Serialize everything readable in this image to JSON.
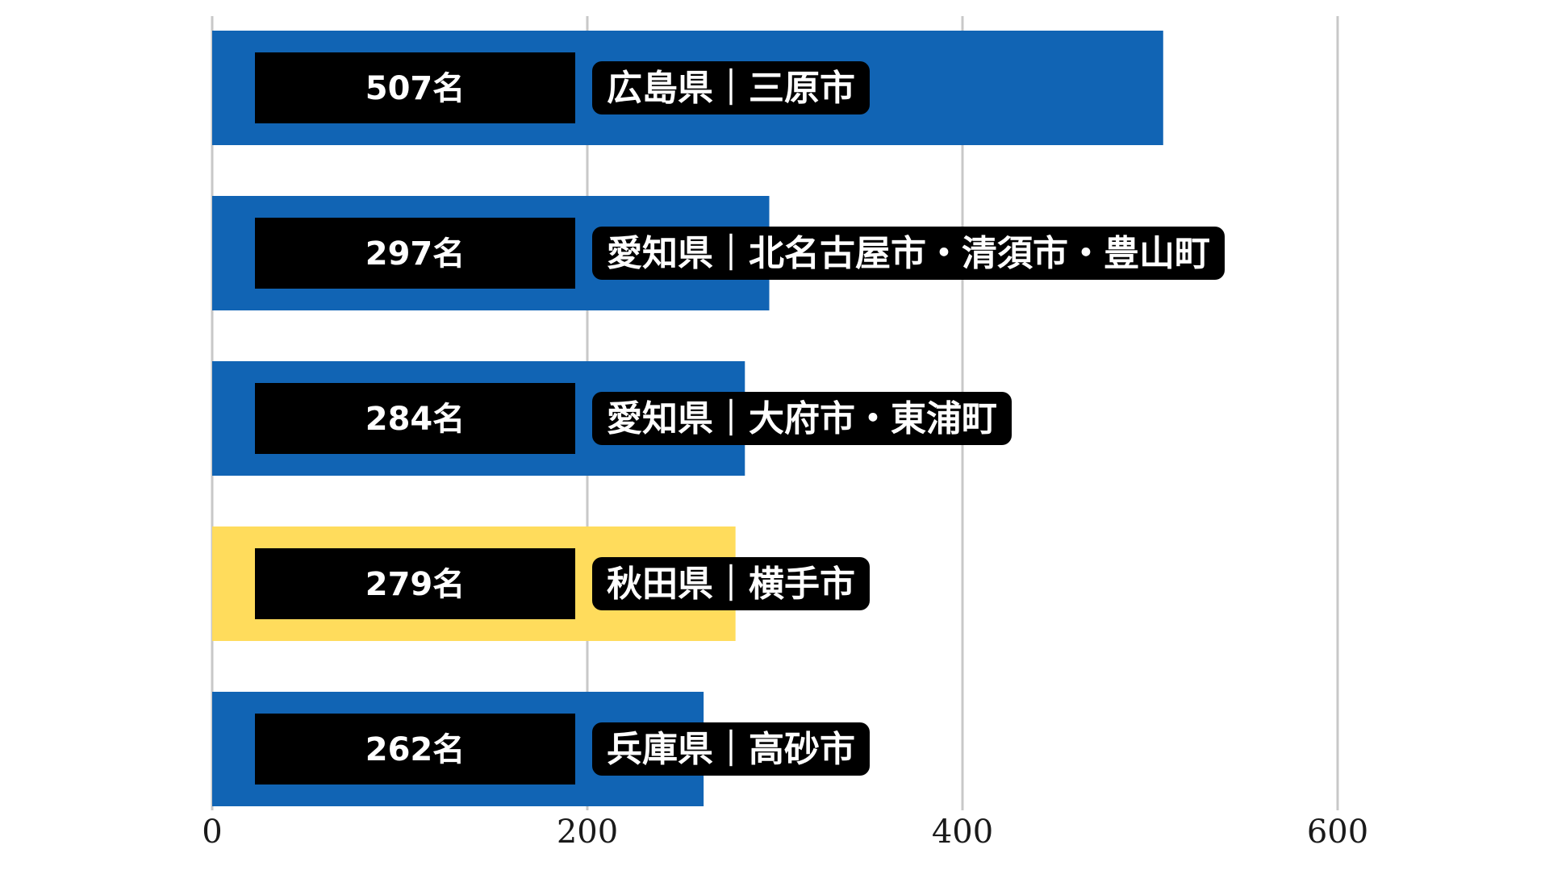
{
  "chart_data": {
    "type": "bar",
    "orientation": "horizontal",
    "categories": [
      "広島県｜三原市",
      "愛知県｜北名古屋市・清須市・豊山町",
      "愛知県｜大府市・東浦町",
      "秋田県｜横手市",
      "兵庫県｜高砂市"
    ],
    "values": [
      507,
      297,
      284,
      279,
      262
    ],
    "value_labels": [
      "507名",
      "297名",
      "284名",
      "279名",
      "262名"
    ],
    "highlight_index": 3,
    "xlim": [
      0,
      700
    ],
    "xticks": [
      0,
      200,
      400,
      600
    ],
    "xtick_labels": [
      "0",
      "200",
      "400",
      "600"
    ],
    "grid": true,
    "colors": {
      "bar": "#1164b4",
      "highlight": "#ffdc5c",
      "label_box": "#000000",
      "label_text": "#ffffff",
      "grid": "#c8c8c8"
    }
  }
}
